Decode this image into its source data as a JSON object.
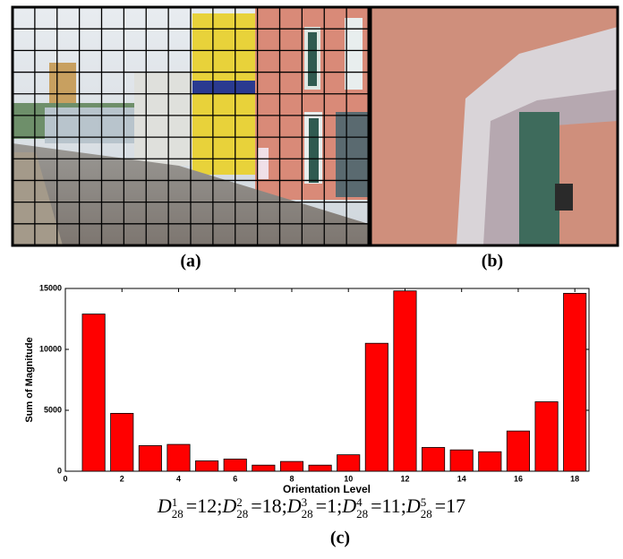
{
  "panels": [
    {
      "label": "(a)"
    },
    {
      "label": "(b)"
    }
  ],
  "chart_data": {
    "type": "bar",
    "x": [
      1,
      2,
      3,
      4,
      5,
      6,
      7,
      8,
      9,
      10,
      11,
      12,
      13,
      14,
      15,
      16,
      17,
      18
    ],
    "values": [
      12900,
      4750,
      2100,
      2200,
      850,
      1000,
      500,
      800,
      500,
      1350,
      10500,
      14800,
      1950,
      1750,
      1600,
      3300,
      5700,
      14600
    ],
    "color": "#ff0000",
    "xlim": [
      0,
      18.5
    ],
    "xticks": [
      0,
      2,
      4,
      6,
      8,
      10,
      12,
      14,
      16,
      18
    ],
    "ylim": [
      0,
      15000
    ],
    "yticks": [
      0,
      5000,
      10000,
      15000
    ],
    "xlabel": "Orientation Level",
    "ylabel": "Sum of Magnitude"
  },
  "equation": {
    "terms": [
      {
        "symbol": "D",
        "sup": "1",
        "sub": "28",
        "relation": "=",
        "value": 12,
        "separator": ";"
      },
      {
        "symbol": "D",
        "sup": "2",
        "sub": "28",
        "relation": "=",
        "value": 18,
        "separator": ";"
      },
      {
        "symbol": "D",
        "sup": "3",
        "sub": "28",
        "relation": "=",
        "value": 1,
        "separator": ";"
      },
      {
        "symbol": "D",
        "sup": "4",
        "sub": "28",
        "relation": "=",
        "value": 11,
        "separator": ";"
      },
      {
        "symbol": "D",
        "sup": "5",
        "sub": "28",
        "relation": "=",
        "value": 17
      }
    ]
  },
  "caption_c": "(c)"
}
